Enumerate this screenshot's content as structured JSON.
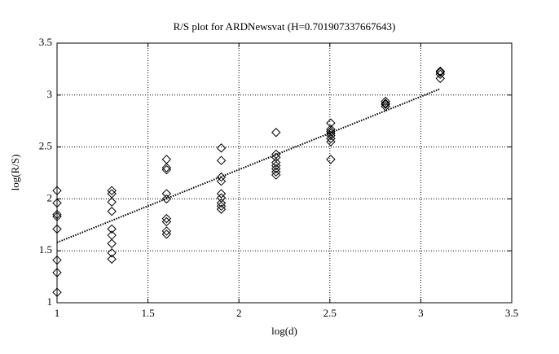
{
  "chart_data": {
    "type": "scatter",
    "title": "R/S plot for ARDNewsvat (H=0.701907337667643)",
    "xlabel": "log(d)",
    "ylabel": "log(R/S)",
    "x": [
      1,
      1,
      1,
      1,
      1,
      1,
      1,
      1,
      1.301,
      1.301,
      1.301,
      1.301,
      1.301,
      1.301,
      1.301,
      1.301,
      1.301,
      1.602,
      1.602,
      1.602,
      1.602,
      1.602,
      1.602,
      1.602,
      1.602,
      1.602,
      1.903,
      1.903,
      1.903,
      1.903,
      1.903,
      1.903,
      1.903,
      1.903,
      1.903,
      2.204,
      2.204,
      2.204,
      2.204,
      2.204,
      2.204,
      2.204,
      2.204,
      2.505,
      2.505,
      2.505,
      2.505,
      2.505,
      2.505,
      2.505,
      2.505,
      2.806,
      2.806,
      2.806,
      2.806,
      3.107,
      3.107,
      3.107,
      3.107
    ],
    "values": [
      2.08,
      1.96,
      1.85,
      1.83,
      1.71,
      1.41,
      1.29,
      1.1,
      2.08,
      2.05,
      1.97,
      1.88,
      1.71,
      1.65,
      1.57,
      1.48,
      1.42,
      2.38,
      2.3,
      2.28,
      2.05,
      2.0,
      1.81,
      1.78,
      1.69,
      1.66,
      2.49,
      2.37,
      2.21,
      2.17,
      2.05,
      2.01,
      1.96,
      1.93,
      1.9,
      2.64,
      2.43,
      2.4,
      2.35,
      2.32,
      2.29,
      2.26,
      2.23,
      2.73,
      2.67,
      2.65,
      2.63,
      2.61,
      2.58,
      2.55,
      2.38,
      2.94,
      2.92,
      2.91,
      2.89,
      3.23,
      3.22,
      3.2,
      3.16
    ],
    "color": "#000000",
    "fit_line": {
      "x": [
        1,
        3.107
      ],
      "y": [
        1.58,
        3.06
      ]
    },
    "xlim": [
      1,
      3.5
    ],
    "xticks": [
      1,
      1.5,
      2,
      2.5,
      3,
      3.5
    ],
    "ylim": [
      1,
      3.5
    ],
    "yticks": [
      1,
      1.5,
      2,
      2.5,
      3,
      3.5
    ],
    "grid": true
  }
}
